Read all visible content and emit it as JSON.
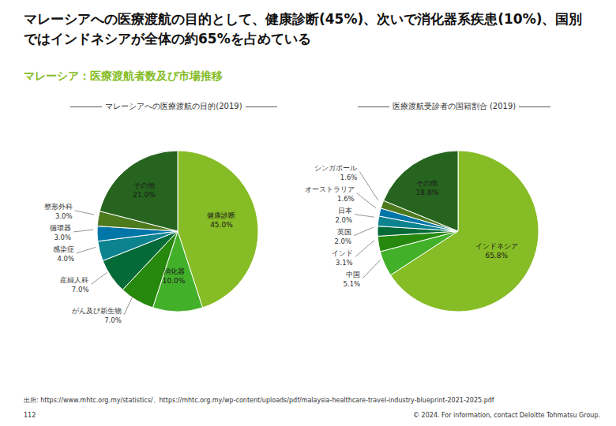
{
  "title": "マレーシアへの医療渡航の目的として、健康診断(45%)、次いで消化器系疾患(10%)、国別ではインドネシアが全体の約65%を占めている",
  "subtitle": "マレーシア：医療渡航者数及び市場推移",
  "chart_data": [
    {
      "type": "pie",
      "title": "マレーシアへの医療渡航の目的(2019)",
      "categories": [
        "健康診断",
        "消化器",
        "がん及び新生物",
        "産婦人科",
        "感染症",
        "循環器",
        "整形外科",
        "その他"
      ],
      "values": [
        45.0,
        10.0,
        7.0,
        7.0,
        4.0,
        3.0,
        3.0,
        21.0
      ],
      "value_labels": [
        "45.0%",
        "10.0%",
        "7.0%",
        "7.0%",
        "4.0%",
        "3.0%",
        "3.0%",
        "21.0%"
      ],
      "colors": [
        "#86bc25",
        "#43b02a",
        "#26890d",
        "#046a38",
        "#0d8390",
        "#0076a8",
        "#4e7a1e",
        "#26641f"
      ],
      "data_labels": true
    },
    {
      "type": "pie",
      "title": "医療渡航受診者の国籍割合 (2019)",
      "categories": [
        "インドネシア",
        "中国",
        "インド",
        "英国",
        "日本",
        "オーストラリア",
        "シンガポール",
        "その他"
      ],
      "values": [
        65.8,
        5.1,
        3.1,
        2.0,
        2.0,
        1.6,
        1.6,
        18.8
      ],
      "value_labels": [
        "65.8%",
        "5.1%",
        "3.1%",
        "2.0%",
        "2.0%",
        "1.6%",
        "1.6%",
        "18.8%"
      ],
      "colors": [
        "#86bc25",
        "#43b02a",
        "#26890d",
        "#046a38",
        "#0d8390",
        "#0076a8",
        "#4e7a1e",
        "#26641f"
      ],
      "data_labels": true
    }
  ],
  "source": "出所: https://www.mhtc.org.my/statistics/、https://mhtc.org.my/wp-content/uploads/pdf/malaysia-healthcare-travel-industry-blueprint-2021-2025.pdf",
  "page": "112",
  "copyright": "© 2024. For information, contact Deloitte Tohmatsu Group."
}
